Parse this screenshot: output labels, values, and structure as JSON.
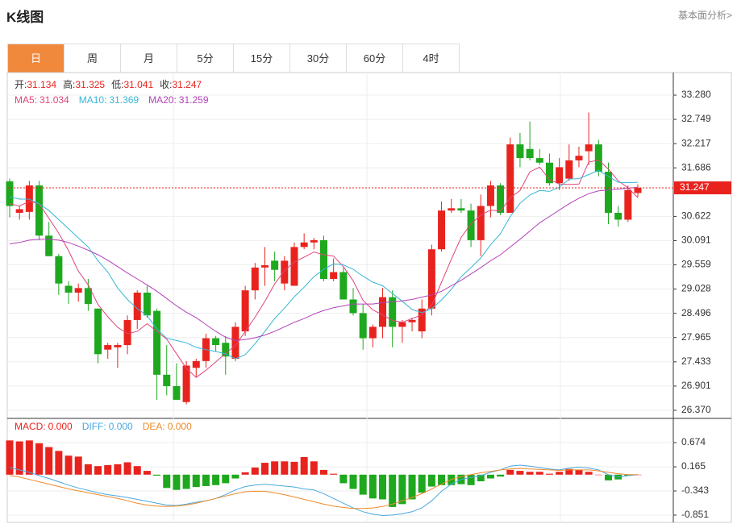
{
  "header": {
    "title": "K线图",
    "link": "基本面分析>"
  },
  "tabs": [
    "日",
    "周",
    "月",
    "5分",
    "15分",
    "30分",
    "60分",
    "4时"
  ],
  "chart_data": [
    {
      "type": "candlestick",
      "ohlc_legend": [
        {
          "label": "开:",
          "value": "31.134"
        },
        {
          "label": "高:",
          "value": "31.325"
        },
        {
          "label": "低:",
          "value": "31.041"
        },
        {
          "label": "收:",
          "value": "31.247"
        }
      ],
      "up_color": "#e8231e",
      "down_color": "#1ea81e",
      "open": [
        31.39,
        30.7,
        30.72,
        31.3,
        30.2,
        29.75,
        29.1,
        28.95,
        29.05,
        28.6,
        27.7,
        27.75,
        27.8,
        28.35,
        28.95,
        28.55,
        27.15,
        26.9,
        26.55,
        27.3,
        27.45,
        27.95,
        27.85,
        27.5,
        28.1,
        29.0,
        29.5,
        29.65,
        29.15,
        29.1,
        29.95,
        30.05,
        30.1,
        29.25,
        29.4,
        28.8,
        28.5,
        27.95,
        28.2,
        28.85,
        28.2,
        28.3,
        28.1,
        28.6,
        29.9,
        30.75,
        30.8,
        30.75,
        30.1,
        30.85,
        31.3,
        30.7,
        32.2,
        32.1,
        31.9,
        31.8,
        31.35,
        31.45,
        31.85,
        32.05,
        32.2,
        31.6,
        30.7,
        30.55,
        31.134
      ],
      "high": [
        31.45,
        30.85,
        31.4,
        31.4,
        30.5,
        29.8,
        29.2,
        29.15,
        29.25,
        28.6,
        27.85,
        27.85,
        28.45,
        29.0,
        29.1,
        28.6,
        27.8,
        27.4,
        27.45,
        27.5,
        28.05,
        28.0,
        28.0,
        28.3,
        29.1,
        29.6,
        29.95,
        29.85,
        29.75,
        30.05,
        30.25,
        30.15,
        30.2,
        29.7,
        29.5,
        29.05,
        28.7,
        28.25,
        29.05,
        29.0,
        28.35,
        28.4,
        28.8,
        30.0,
        30.95,
        31.0,
        31.0,
        30.9,
        31.1,
        31.4,
        31.35,
        32.35,
        32.45,
        32.7,
        32.1,
        32.0,
        31.9,
        32.2,
        32.15,
        32.9,
        32.3,
        31.8,
        30.85,
        31.3,
        31.325
      ],
      "low": [
        30.6,
        30.55,
        30.55,
        30.1,
        29.75,
        28.9,
        28.7,
        28.75,
        28.55,
        27.4,
        27.5,
        27.3,
        27.6,
        28.15,
        28.4,
        26.6,
        26.7,
        26.6,
        26.5,
        27.1,
        27.3,
        27.65,
        27.15,
        27.45,
        28.0,
        28.8,
        29.1,
        29.2,
        29.0,
        29.1,
        29.9,
        29.9,
        29.2,
        29.2,
        28.8,
        28.45,
        27.7,
        27.75,
        27.95,
        27.75,
        27.85,
        28.1,
        27.95,
        28.45,
        29.85,
        30.7,
        30.7,
        29.95,
        29.75,
        30.6,
        30.65,
        30.7,
        31.7,
        31.85,
        31.75,
        31.3,
        31.2,
        31.4,
        31.7,
        31.75,
        31.5,
        30.45,
        30.4,
        30.5,
        31.041
      ],
      "close": [
        30.85,
        30.78,
        31.3,
        30.2,
        29.75,
        29.15,
        28.95,
        29.05,
        28.7,
        27.6,
        27.8,
        27.8,
        28.35,
        28.95,
        28.45,
        27.15,
        26.9,
        26.6,
        27.35,
        27.45,
        27.95,
        27.8,
        27.55,
        28.2,
        29.0,
        29.5,
        29.55,
        29.45,
        29.65,
        29.95,
        30.05,
        30.1,
        29.25,
        29.4,
        28.8,
        28.5,
        27.95,
        28.2,
        28.85,
        28.2,
        28.3,
        28.35,
        28.6,
        29.9,
        30.75,
        30.8,
        30.75,
        30.1,
        30.85,
        31.3,
        30.7,
        32.2,
        31.9,
        31.9,
        31.8,
        31.35,
        31.7,
        31.85,
        31.95,
        32.2,
        31.6,
        30.7,
        30.55,
        31.2,
        31.247
      ],
      "series": [
        {
          "name": "MA5:",
          "legend_value": "31.034",
          "color": "#e0457b",
          "values": [
            30.9,
            30.85,
            30.95,
            30.9,
            30.58,
            30.25,
            29.87,
            29.42,
            29.12,
            28.69,
            28.42,
            28.19,
            28.05,
            28.1,
            28.27,
            28.1,
            27.93,
            27.61,
            27.29,
            27.09,
            27.25,
            27.43,
            27.62,
            27.79,
            28.1,
            28.41,
            28.76,
            29.14,
            29.43,
            29.62,
            29.73,
            29.84,
            29.78,
            29.75,
            29.52,
            29.21,
            28.78,
            28.57,
            28.46,
            28.34,
            28.3,
            28.38,
            28.46,
            28.67,
            29.18,
            29.68,
            30.16,
            30.46,
            30.65,
            30.76,
            30.74,
            31.03,
            31.19,
            31.6,
            31.7,
            31.43,
            31.33,
            31.32,
            31.33,
            31.81,
            31.86,
            31.66,
            31.4,
            31.25,
            31.034
          ]
        },
        {
          "name": "MA10:",
          "legend_value": "31.369",
          "color": "#35b6d5",
          "values": [
            31.05,
            31.0,
            31.0,
            30.9,
            30.75,
            30.55,
            30.35,
            30.15,
            29.95,
            29.65,
            29.4,
            29.05,
            28.8,
            28.6,
            28.45,
            28.15,
            27.95,
            27.9,
            27.85,
            27.75,
            27.7,
            27.66,
            27.61,
            27.5,
            27.59,
            27.83,
            28.1,
            28.38,
            28.61,
            28.86,
            29.07,
            29.3,
            29.46,
            29.58,
            29.56,
            29.46,
            29.31,
            29.18,
            29.1,
            28.93,
            28.76,
            28.58,
            28.51,
            28.6,
            28.79,
            29.02,
            29.3,
            29.5,
            29.71,
            30.0,
            30.24,
            30.62,
            30.91,
            31.09,
            31.19,
            31.17,
            31.26,
            31.44,
            31.45,
            31.54,
            31.63,
            31.5,
            31.37,
            31.36,
            31.369
          ]
        },
        {
          "name": "MA20:",
          "legend_value": "31.259",
          "color": "#b341b8",
          "values": [
            30.02,
            30.05,
            30.1,
            30.12,
            30.12,
            30.1,
            30.05,
            29.97,
            29.88,
            29.78,
            29.66,
            29.52,
            29.38,
            29.25,
            29.12,
            28.98,
            28.82,
            28.66,
            28.52,
            28.4,
            28.25,
            28.1,
            27.97,
            27.9,
            27.92,
            27.96,
            28.02,
            28.1,
            28.2,
            28.3,
            28.38,
            28.48,
            28.56,
            28.62,
            28.66,
            28.7,
            28.7,
            28.7,
            28.73,
            28.75,
            28.77,
            28.8,
            28.85,
            28.9,
            28.98,
            29.1,
            29.22,
            29.36,
            29.5,
            29.65,
            29.78,
            29.95,
            30.12,
            30.3,
            30.48,
            30.62,
            30.76,
            30.9,
            31.02,
            31.12,
            31.18,
            31.2,
            31.22,
            31.24,
            31.259
          ]
        }
      ],
      "last_price": 31.247,
      "ylim": [
        26.21,
        33.74
      ],
      "yticks": [
        {
          "value": 33.28,
          "label": "33.280"
        },
        32.749,
        32.217,
        31.686,
        30.622,
        30.091,
        29.559,
        29.028,
        28.496,
        27.965,
        27.433,
        26.901,
        {
          "value": 26.37,
          "label": "26.370"
        }
      ],
      "grid": true
    },
    {
      "type": "macd",
      "series": [
        {
          "name": "MACD:",
          "legend_value": "0.000",
          "color": "#e8231e",
          "down_color": "#1ea81e",
          "values": [
            0.72,
            0.7,
            0.72,
            0.66,
            0.58,
            0.5,
            0.4,
            0.38,
            0.22,
            0.18,
            0.2,
            0.22,
            0.26,
            0.18,
            0.08,
            -0.02,
            -0.28,
            -0.32,
            -0.3,
            -0.26,
            -0.24,
            -0.22,
            -0.18,
            -0.08,
            0.05,
            0.15,
            0.25,
            0.28,
            0.28,
            0.27,
            0.37,
            0.28,
            0.1,
            0.02,
            -0.18,
            -0.3,
            -0.42,
            -0.5,
            -0.52,
            -0.68,
            -0.62,
            -0.52,
            -0.38,
            -0.25,
            -0.22,
            -0.22,
            -0.2,
            -0.22,
            -0.14,
            -0.08,
            -0.04,
            0.1,
            0.08,
            0.06,
            0.06,
            0.02,
            0.06,
            0.12,
            0.1,
            0.06,
            0,
            -0.12,
            -0.1,
            -0.02,
            0
          ]
        },
        {
          "name": "DIFF:",
          "legend_value": "0.000",
          "color": "#4aa8e0",
          "values": [
            0.15,
            0.1,
            0.05,
            -0.02,
            -0.08,
            -0.15,
            -0.22,
            -0.28,
            -0.33,
            -0.38,
            -0.42,
            -0.45,
            -0.48,
            -0.52,
            -0.56,
            -0.6,
            -0.64,
            -0.65,
            -0.62,
            -0.58,
            -0.55,
            -0.5,
            -0.42,
            -0.32,
            -0.25,
            -0.22,
            -0.2,
            -0.22,
            -0.24,
            -0.26,
            -0.3,
            -0.32,
            -0.4,
            -0.5,
            -0.6,
            -0.7,
            -0.78,
            -0.83,
            -0.86,
            -0.85,
            -0.82,
            -0.78,
            -0.7,
            -0.55,
            -0.35,
            -0.2,
            -0.1,
            -0.06,
            -0.02,
            0.05,
            0.1,
            0.18,
            0.2,
            0.18,
            0.15,
            0.12,
            0.1,
            0.14,
            0.16,
            0.14,
            0.1,
            0,
            -0.05,
            -0.02,
            0
          ]
        },
        {
          "name": "DEA:",
          "legend_value": "0.000",
          "color": "#f08a2a",
          "values": [
            -0.02,
            -0.05,
            -0.1,
            -0.15,
            -0.2,
            -0.25,
            -0.3,
            -0.34,
            -0.38,
            -0.42,
            -0.46,
            -0.5,
            -0.55,
            -0.6,
            -0.64,
            -0.66,
            -0.67,
            -0.66,
            -0.64,
            -0.6,
            -0.55,
            -0.5,
            -0.45,
            -0.4,
            -0.36,
            -0.35,
            -0.35,
            -0.38,
            -0.42,
            -0.47,
            -0.52,
            -0.57,
            -0.62,
            -0.66,
            -0.69,
            -0.71,
            -0.71,
            -0.7,
            -0.67,
            -0.62,
            -0.55,
            -0.48,
            -0.4,
            -0.3,
            -0.2,
            -0.1,
            -0.04,
            0,
            0.04,
            0.07,
            0.1,
            0.12,
            0.13,
            0.12,
            0.11,
            0.1,
            0.09,
            0.1,
            0.1,
            0.1,
            0.08,
            0.05,
            0.02,
            0,
            0
          ]
        }
      ],
      "ylim": [
        -1.004,
        1.167
      ],
      "yticks": [
        0.674,
        0.165,
        -0.343,
        -0.851
      ]
    }
  ]
}
